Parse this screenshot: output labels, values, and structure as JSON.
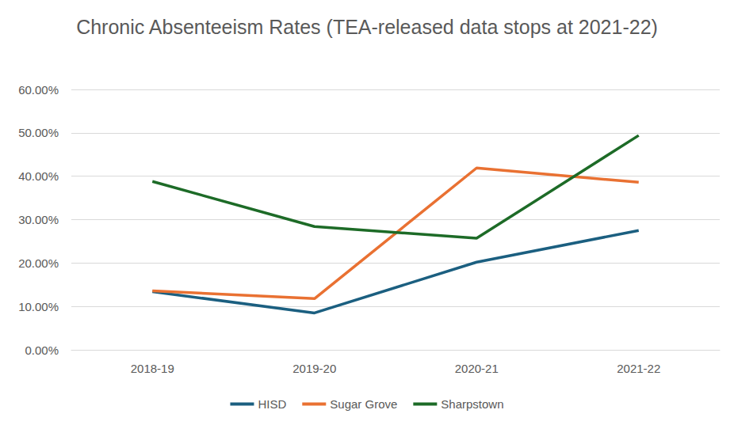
{
  "chart_data": {
    "type": "line",
    "title": "Chronic Absenteeism Rates (TEA-released data stops at 2021-22)",
    "categories": [
      "2018-19",
      "2019-20",
      "2020-21",
      "2021-22"
    ],
    "series": [
      {
        "name": "HISD",
        "color": "#1b5f80",
        "values": [
          13.4,
          8.5,
          20.2,
          27.5
        ]
      },
      {
        "name": "Sugar Grove",
        "color": "#e97132",
        "values": [
          13.6,
          11.8,
          41.9,
          38.6
        ]
      },
      {
        "name": "Sharpstown",
        "color": "#1d6b27",
        "values": [
          38.8,
          28.4,
          25.7,
          49.4
        ]
      }
    ],
    "ylim": [
      0,
      60
    ],
    "yticks": [
      {
        "value": 0,
        "label": "0.00%"
      },
      {
        "value": 10,
        "label": "10.00%"
      },
      {
        "value": 20,
        "label": "20.00%"
      },
      {
        "value": 30,
        "label": "30.00%"
      },
      {
        "value": 40,
        "label": "40.00%"
      },
      {
        "value": 50,
        "label": "50.00%"
      },
      {
        "value": 60,
        "label": "60.00%"
      }
    ],
    "grid": true,
    "legend": "bottom"
  }
}
